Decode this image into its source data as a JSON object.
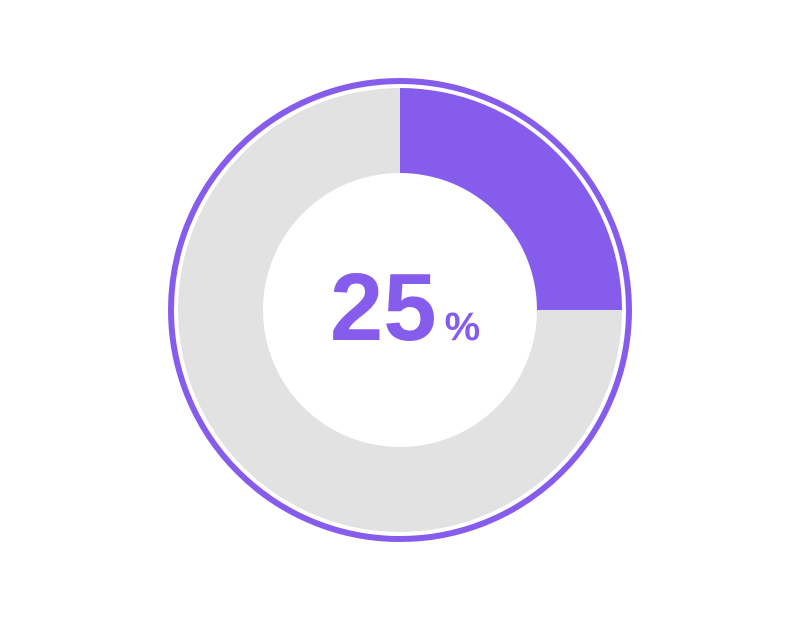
{
  "chart_data": {
    "type": "donut",
    "value": 25,
    "unit": "%",
    "ylim": [
      0,
      100
    ],
    "color": "#865ced",
    "track_color": "#e2e2e2"
  }
}
